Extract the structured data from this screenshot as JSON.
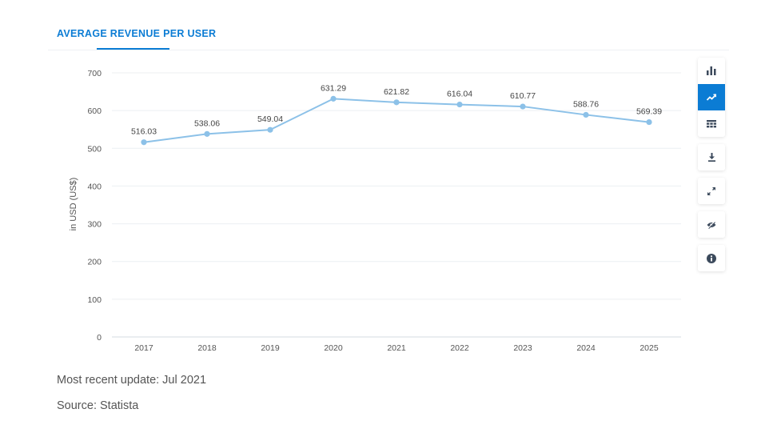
{
  "header": {
    "tab_label": "AVERAGE REVENUE PER USER"
  },
  "chart_data": {
    "type": "line",
    "x": [
      "2017",
      "2018",
      "2019",
      "2020",
      "2021",
      "2022",
      "2023",
      "2024",
      "2025"
    ],
    "series": [
      {
        "values": [
          516.03,
          538.06,
          549.04,
          631.29,
          621.82,
          616.04,
          610.77,
          588.76,
          569.39
        ]
      }
    ],
    "data_labels": [
      "516.03",
      "538.06",
      "549.04",
      "631.29",
      "621.82",
      "616.04",
      "610.77",
      "588.76",
      "569.39"
    ],
    "ylabel": "in USD (US$)",
    "ylim": [
      0,
      700
    ],
    "yticks": [
      0,
      100,
      200,
      300,
      400,
      500,
      600,
      700
    ],
    "grid": true,
    "line_color": "#8cc1e8"
  },
  "toolbar": {
    "buttons": [
      {
        "icon": "bar-chart-icon",
        "active": false
      },
      {
        "icon": "line-chart-icon",
        "active": true
      },
      {
        "icon": "table-icon",
        "active": false
      },
      {
        "icon": "download-icon",
        "active": false
      },
      {
        "icon": "fullscreen-icon",
        "active": false
      },
      {
        "icon": "hide-eye-icon",
        "active": false
      },
      {
        "icon": "info-icon",
        "active": false
      }
    ],
    "active_color": "#0b7cd4",
    "icon_color": "#3c4a5c"
  },
  "footer": {
    "update_text": "Most recent update: Jul 2021",
    "source_text": "Source: Statista"
  }
}
